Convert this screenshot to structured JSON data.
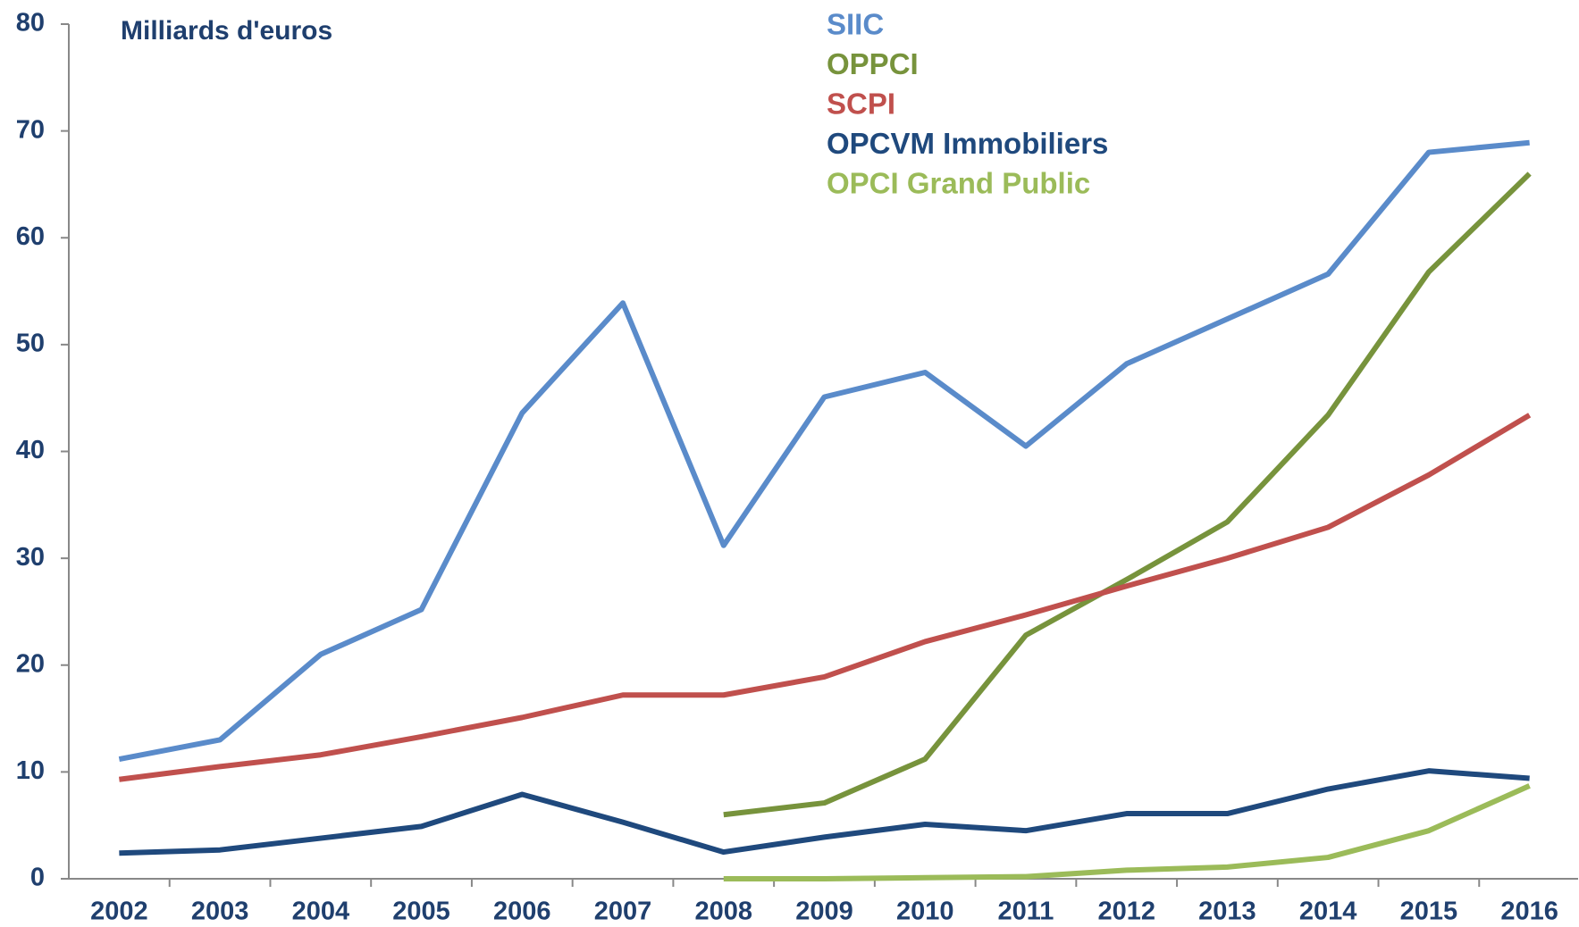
{
  "chart_data": {
    "type": "line",
    "annotation": "Milliards d'euros",
    "categories": [
      "2002",
      "2003",
      "2004",
      "2005",
      "2006",
      "2007",
      "2008",
      "2009",
      "2010",
      "2011",
      "2012",
      "2013",
      "2014",
      "2015",
      "2016"
    ],
    "series": [
      {
        "name": "SIIC",
        "color": "#5a8bca",
        "values": [
          11.2,
          13,
          21,
          25.2,
          43.6,
          53.9,
          31.2,
          45.1,
          47.4,
          40.5,
          48.2,
          52.4,
          56.6,
          68,
          68.9
        ]
      },
      {
        "name": "OPPCI",
        "color": "#77933c",
        "values": [
          null,
          null,
          null,
          null,
          null,
          null,
          6,
          7.1,
          11.2,
          22.8,
          28,
          33.4,
          43.4,
          56.8,
          66
        ]
      },
      {
        "name": "SCPI",
        "color": "#c0504d",
        "values": [
          9.3,
          10.5,
          11.6,
          13.3,
          15.1,
          17.2,
          17.2,
          18.9,
          22.2,
          24.7,
          27.4,
          30,
          32.9,
          37.8,
          43.4
        ]
      },
      {
        "name": "OPCVM Immobiliers",
        "color": "#1f497d",
        "values": [
          2.4,
          2.7,
          3.8,
          4.9,
          7.9,
          5.3,
          2.5,
          3.9,
          5.1,
          4.5,
          6.1,
          6.1,
          8.4,
          10.1,
          9.4
        ]
      },
      {
        "name": "OPCI Grand Public",
        "color": "#9bbb59",
        "values": [
          null,
          null,
          null,
          null,
          null,
          null,
          0,
          0,
          0.1,
          0.2,
          0.8,
          1.1,
          2,
          4.5,
          8.7
        ]
      }
    ],
    "ylim": [
      0,
      80
    ],
    "yticks": [
      0,
      10,
      20,
      30,
      40,
      50,
      60,
      70,
      80
    ],
    "grid": false,
    "legend": "top"
  }
}
